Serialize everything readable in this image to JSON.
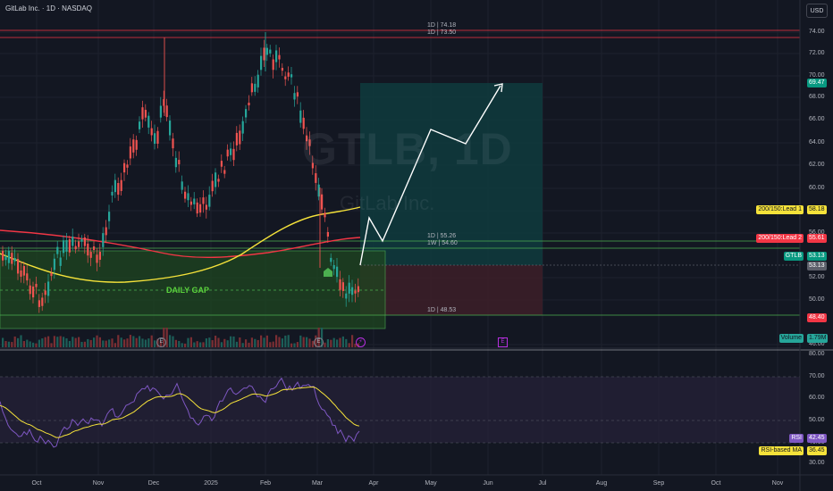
{
  "header": {
    "title": "GitLab Inc. · 1D · NASDAQ",
    "currency": "USD"
  },
  "watermark": {
    "symbol": "GTLB, 1D",
    "name": "GitLab Inc."
  },
  "annotations": {
    "daily_gap": "DAILY GAP",
    "high_1d": "1D | 74.18",
    "high_1d_b": "1D | 73.50",
    "level_1d_55": "1D | 55.26",
    "level_1w_54": "1W | 54.60",
    "level_1d_48": "1D | 48.53"
  },
  "price_axis": {
    "ticks": [
      "74.00",
      "72.00",
      "70.00",
      "68.00",
      "66.00",
      "64.00",
      "62.00",
      "60.00",
      "58.00",
      "56.00",
      "52.00",
      "50.00",
      "46.00"
    ]
  },
  "price_tags": [
    {
      "label": "",
      "value": "69.47",
      "bg": "#089981",
      "fg": "#ffffff"
    },
    {
      "label": "200/150:Lead 1",
      "value": "58.18",
      "bg": "#f5e23a",
      "fg": "#131722"
    },
    {
      "label": "200/150:Lead 2",
      "value": "55.61",
      "bg": "#f23645",
      "fg": "#ffffff"
    },
    {
      "label": "GTLB",
      "value": "53.13",
      "bg": "#089981",
      "fg": "#ffffff"
    },
    {
      "label": "",
      "value": "53.13",
      "bg": "#5d606b",
      "fg": "#ffffff"
    },
    {
      "label": "",
      "value": "48.40",
      "bg": "#f23645",
      "fg": "#ffffff"
    },
    {
      "label": "Volume",
      "value": "1.79M",
      "bg": "#26a69a",
      "fg": "#131722"
    }
  ],
  "rsi_axis": {
    "ticks": [
      "80.00",
      "70.00",
      "60.00",
      "50.00",
      "40.00",
      "30.00"
    ]
  },
  "rsi_tags": [
    {
      "label": "RSI",
      "value": "42.45",
      "bg": "#7e57c2",
      "fg": "#ffffff"
    },
    {
      "label": "RSI-based MA",
      "value": "36.45",
      "bg": "#f5e23a",
      "fg": "#131722"
    }
  ],
  "time_axis": {
    "ticks": [
      "Oct",
      "Nov",
      "Dec",
      "2025",
      "Feb",
      "Mar",
      "Apr",
      "May",
      "Jun",
      "Jul",
      "Aug",
      "Sep",
      "Oct",
      "Nov"
    ]
  },
  "events": {
    "earnings": "E",
    "split": "E"
  },
  "colors": {
    "bg": "#131722",
    "up": "#26a69a",
    "down": "#ef5350",
    "ma_lead1": "#f5e23a",
    "ma_lead2": "#f23645",
    "rsi": "#7e57c2",
    "target_zone": "#0f3b3d",
    "stop_zone": "#3b1e28",
    "gap_zone": "#1e4620"
  }
}
